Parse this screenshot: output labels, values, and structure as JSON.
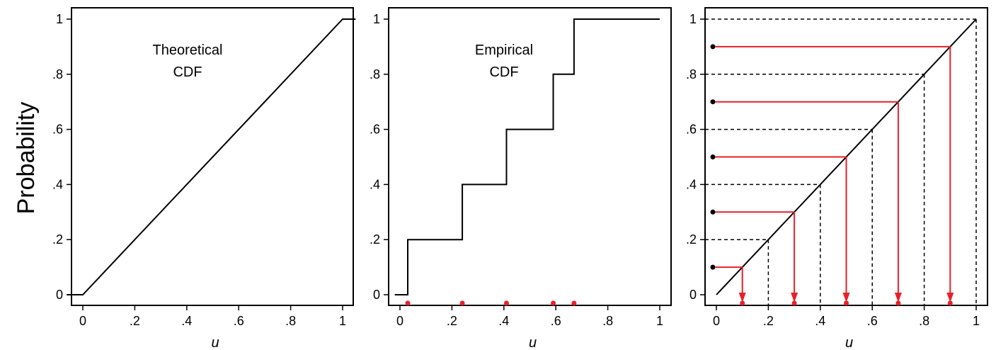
{
  "figure": {
    "ylabel": "Probability",
    "colors": {
      "line": "#000000",
      "accent": "#e8202a",
      "frame": "#000000"
    }
  },
  "chart_data": [
    {
      "id": "theoretical",
      "type": "line",
      "annotation": [
        "Theoretical",
        "CDF"
      ],
      "xlabel": "u",
      "xlim": [
        0,
        1
      ],
      "ylim": [
        0,
        1
      ],
      "xticks": [
        "0",
        ".2",
        ".4",
        ".6",
        ".8",
        "1"
      ],
      "yticks": [
        "0",
        ".2",
        ".4",
        ".6",
        ".8",
        "1"
      ],
      "series": [
        {
          "x": [
            0,
            1
          ],
          "y": [
            0,
            1
          ]
        }
      ],
      "extensions": {
        "left": -0.06,
        "right": 1.05
      }
    },
    {
      "id": "empirical",
      "type": "line",
      "annotation": [
        "Empirical",
        "CDF"
      ],
      "xlabel": "u",
      "xlim": [
        0,
        1
      ],
      "ylim": [
        0,
        1
      ],
      "xticks": [
        "0",
        ".2",
        ".4",
        ".6",
        ".8",
        "1"
      ],
      "yticks": [
        "0",
        ".2",
        ".4",
        ".6",
        ".8",
        "1"
      ],
      "step": {
        "points": [
          0.03,
          0.24,
          0.41,
          0.59,
          0.67
        ],
        "levels": [
          0,
          0.2,
          0.4,
          0.6,
          0.8,
          1.0
        ],
        "x_start": -0.02,
        "x_end": 1.0
      },
      "sample_points": [
        0.03,
        0.24,
        0.41,
        0.59,
        0.67
      ],
      "sample_y": -0.015
    },
    {
      "id": "inverse_transform",
      "type": "line",
      "annotation": [],
      "xlabel": "u",
      "xlim": [
        0,
        1
      ],
      "ylim": [
        0,
        1
      ],
      "xticks": [
        "0",
        ".2",
        ".4",
        ".6",
        ".8",
        "1"
      ],
      "yticks": [
        "0",
        ".2",
        ".4",
        ".6",
        ".8",
        "1"
      ],
      "series": [
        {
          "x": [
            0,
            1
          ],
          "y": [
            0,
            1
          ]
        }
      ],
      "dashed_levels": [
        0.2,
        0.4,
        0.6,
        0.8,
        1.0
      ],
      "mapped_points": [
        0.1,
        0.3,
        0.5,
        0.7,
        0.9
      ],
      "sample_y": -0.015
    }
  ]
}
